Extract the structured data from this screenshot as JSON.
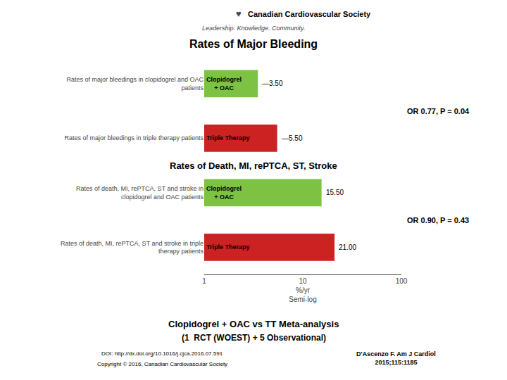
{
  "chart_data": {
    "type": "bar",
    "orientation": "horizontal",
    "log": "x",
    "title": "Rates of Major Bleeding",
    "subtitle": "Rates of Death, MI, rePTCA, ST, Stroke",
    "xlabel": "%/yr\nSemi-log",
    "categories": [
      "Rates of major bleedings in clopidogrel and OAC\npatients",
      "Rates of major bleedings in triple therapy patients",
      "Rates of death, MI, rePTCA, ST and stroke in\nclopidogrel and OAC patients",
      "Rates of death, MI, rePTCA, ST and stroke in triple\ntherapy patients"
    ],
    "values": [
      3.5,
      5.5,
      15.5,
      21.0
    ],
    "value_labels": [
      "—3.50",
      "—5.50",
      "15.50",
      "21.00"
    ],
    "data_labels": true,
    "bar_labels": [
      "Clopidogrel\n+ OAC",
      "Triple Therapy",
      "Clopidogrel\n+ OAC",
      "Triple Therapy"
    ],
    "colors": [
      "#7DC242",
      "#CC2222",
      "#7DC242",
      "#CC2222"
    ],
    "xlim": [
      1,
      100
    ],
    "xticks": [
      1,
      10,
      100
    ],
    "grid": false,
    "annotations": [
      "OR 0.77, P = 0.04",
      "OR 0.90, P = 0.43"
    ],
    "header": [
      "♥",
      "Canadian Cardiovascular Society",
      "Leadership. Knowledge. Community."
    ],
    "footer": [
      "Clopidogrel + OAC vs TT Meta-analysis",
      "(1  RCT (WOEST) + 5 Observational)",
      "DOI: http://dx.doi.org/10.1016/j.cjca.2016.07.591",
      "Copyright © 2016, Canadian Cardiovascular Society",
      "D'Ascenzo F. Am J Cardiol\n2015;115:1185"
    ]
  }
}
